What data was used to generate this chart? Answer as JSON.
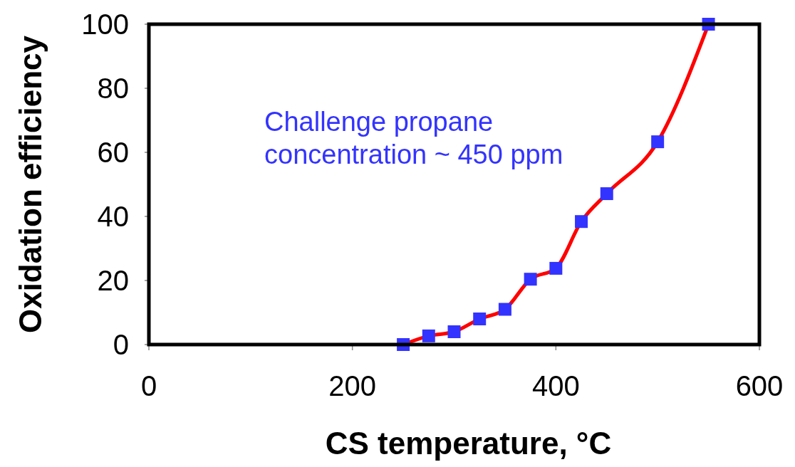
{
  "chart_data": {
    "type": "line",
    "xlabel": "CS temperature, °C",
    "ylabel": "Oxidation efficiency",
    "x": [
      250,
      275,
      300,
      325,
      350,
      375,
      400,
      425,
      450,
      500,
      550
    ],
    "series": [
      {
        "color": "#ff0000",
        "colors": [
          "#3333ff",
          "#3333ff",
          "#3333ff",
          "#3333ff",
          "#3333ff",
          "#3333ff",
          "#3333ff",
          "#3333ff",
          "#3333ff",
          "#3333ff",
          "#3333ff"
        ],
        "values": [
          0,
          2.7,
          4,
          8,
          11,
          20.4,
          23.8,
          38.4,
          47.1,
          63.3,
          100
        ]
      }
    ],
    "xlim": [
      0,
      600
    ],
    "xticks": [
      0,
      200,
      400,
      600
    ],
    "ylim": [
      0,
      100
    ],
    "yticks": [
      0,
      20,
      40,
      60,
      80,
      100
    ],
    "marker": "square",
    "grid": false,
    "annotations": [
      "Challenge propane\nconcentration ~ 450 ppm"
    ]
  }
}
